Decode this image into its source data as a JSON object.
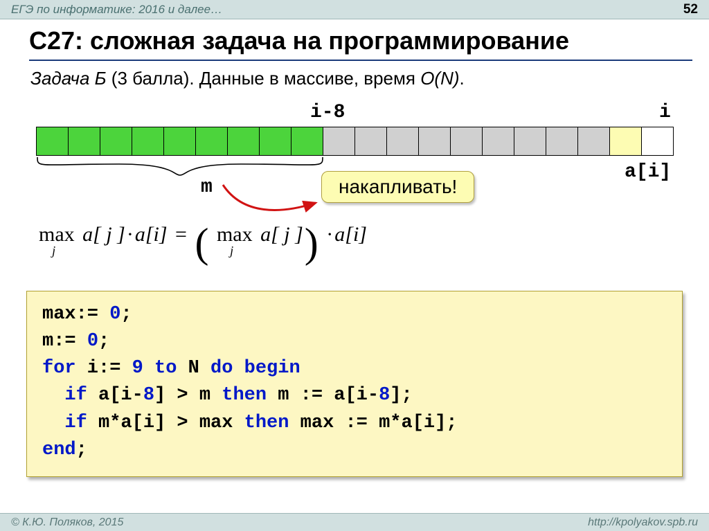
{
  "header": {
    "title": "ЕГЭ по информатике: 2016 и далее…",
    "page": "52"
  },
  "title": "С27: сложная задача на программирование",
  "subtitle": {
    "task": "Задача Б",
    "points": " (3 балла). Данные в массиве,  время ",
    "bigo": "O(N)",
    "dot": "."
  },
  "array": {
    "label_i8": "i-8",
    "label_i": "i",
    "label_ai": "a[i]",
    "label_m": "m",
    "cells": [
      {
        "color": "cgreen"
      },
      {
        "color": "cgreen"
      },
      {
        "color": "cgreen"
      },
      {
        "color": "cgreen"
      },
      {
        "color": "cgreen"
      },
      {
        "color": "cgreen"
      },
      {
        "color": "cgreen"
      },
      {
        "color": "cgreen"
      },
      {
        "color": "cgreen"
      },
      {
        "color": "cgray"
      },
      {
        "color": "cgray"
      },
      {
        "color": "cgray"
      },
      {
        "color": "cgray"
      },
      {
        "color": "cgray"
      },
      {
        "color": "cgray"
      },
      {
        "color": "cgray"
      },
      {
        "color": "cgray"
      },
      {
        "color": "cgray"
      },
      {
        "color": "cyellow"
      },
      {
        "color": "cwhite"
      }
    ],
    "callout": "накапливать!",
    "colors": {
      "green": "#4cd43c",
      "gray": "#d0d0d0",
      "yellow": "#fdfcb3",
      "white": "#ffffff",
      "border": "#000000",
      "arrow": "#d11313"
    }
  },
  "formula": {
    "lhs_max": "max",
    "sub": "j",
    "aj": "a[ j ]",
    "dot": "·",
    "ai": "a[i]",
    "eq": "="
  },
  "code": {
    "l1a": "max:= ",
    "l1b": "0",
    "l1c": ";",
    "l2a": "m:= ",
    "l2b": "0",
    "l2c": ";",
    "l3a": "for",
    "l3b": " i:= ",
    "l3c": "9",
    "l3d": " ",
    "l3e": "to",
    "l3f": " N ",
    "l3g": "do begin",
    "l4a": "  ",
    "l4b": "if",
    "l4c": " a[i-",
    "l4d": "8",
    "l4e": "] > m ",
    "l4f": "then",
    "l4g": " m := a[i-",
    "l4h": "8",
    "l4i": "];",
    "l5a": "  ",
    "l5b": "if",
    "l5c": " m*a[i] > max ",
    "l5d": "then",
    "l5e": " max := m*a[i];",
    "l6a": "end",
    "l6b": ";"
  },
  "footer": {
    "left": "© К.Ю. Поляков, 2015",
    "right": "http://kpolyakov.spb.ru"
  },
  "style": {
    "header_bg": "#d1e0e0",
    "code_bg": "#fdf7c3",
    "title_underline": "#1a3a7a"
  }
}
